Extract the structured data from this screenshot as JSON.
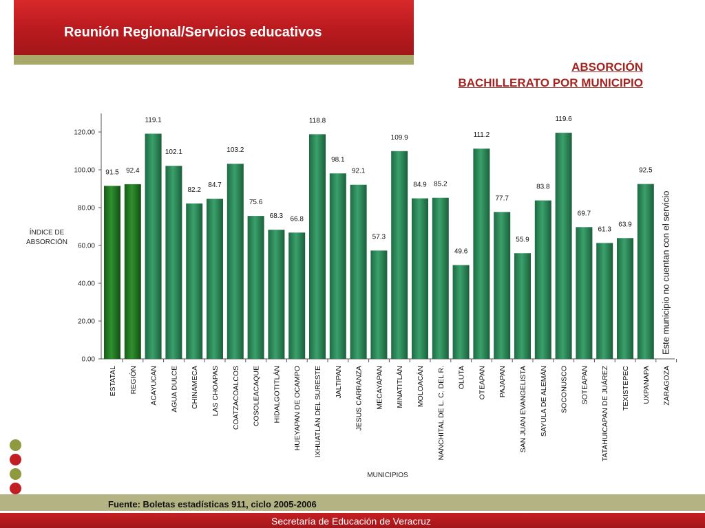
{
  "header": {
    "title": "Reunión Regional/Servicios educativos"
  },
  "subtitle": {
    "line1": "ABSORCIÓN",
    "line2": "BACHILLERATO POR MUNICIPIO"
  },
  "colors": {
    "highlight_bar": "#1f7a1f",
    "regular_bar": "#2e8b57",
    "brand_red": "#b81a1e",
    "olive": "#a9a96a"
  },
  "chart_data": {
    "type": "bar",
    "ylabel": "ÍNDICE DE ABSORCIÓN",
    "xlabel": "MUNICIPIOS",
    "ylim": [
      0,
      120
    ],
    "yticks": [
      "0.00",
      "20.00",
      "40.00",
      "60.00",
      "80.00",
      "100.00",
      "120.00"
    ],
    "grid": false,
    "categories": [
      "ESTATAL",
      "REGIÓN",
      "ACAYUCAN",
      "AGUA DULCE",
      "CHINAMECA",
      "LAS CHOAPAS",
      "COATZACOALCOS",
      "COSOLEACAQUE",
      "HIDALGOTITLÁN",
      "HUEYAPAN DE OCAMPO",
      "IXHUATLÁN DEL SURESTE",
      "JALTIPAN",
      "JESUS CARRANZA",
      "MECAYAPAN",
      "MINATITLÁN",
      "MOLOACÁN",
      "NANCHITAL DE L. C. DEL R.",
      "OLUTA",
      "OTEAPAN",
      "PAJAPAN",
      "SAN JUAN EVANGELISTA",
      "SAYULA DE ALEMÁN",
      "SOCONUSCO",
      "SOTEAPAN",
      "TATAHUICAPAN DE JUÁREZ",
      "TEXISTEPEC",
      "UXPANAPA",
      "ZARAGOZA"
    ],
    "values": [
      91.5,
      92.4,
      119.1,
      102.1,
      82.2,
      84.7,
      103.2,
      75.6,
      68.3,
      66.8,
      118.8,
      98.1,
      92.1,
      57.3,
      109.9,
      84.9,
      85.2,
      49.6,
      111.2,
      77.7,
      55.9,
      83.8,
      119.6,
      69.7,
      61.3,
      63.9,
      92.5,
      null
    ],
    "value_labels": [
      "91.5",
      "92.4",
      "119.1",
      "102.1",
      "82.2",
      "84.7",
      "103.2",
      "75.6",
      "68.3",
      "66.8",
      "118.8",
      "98.1",
      "92.1",
      "57.3",
      "109.9",
      "84.9",
      "85.2",
      "49.6",
      "111.2",
      "77.7",
      "55.9",
      "83.8",
      "119.6",
      "69.7",
      "61.3",
      "63.9",
      "92.5",
      ""
    ],
    "highlighted": [
      "ESTATAL",
      "REGIÓN"
    ],
    "annotation": "Este municipio no cuentan con el servicio"
  },
  "source": "Fuente: Boletas estadísticas 911, ciclo 2005-2006",
  "footer": "Secretaría de Educación de Veracruz"
}
